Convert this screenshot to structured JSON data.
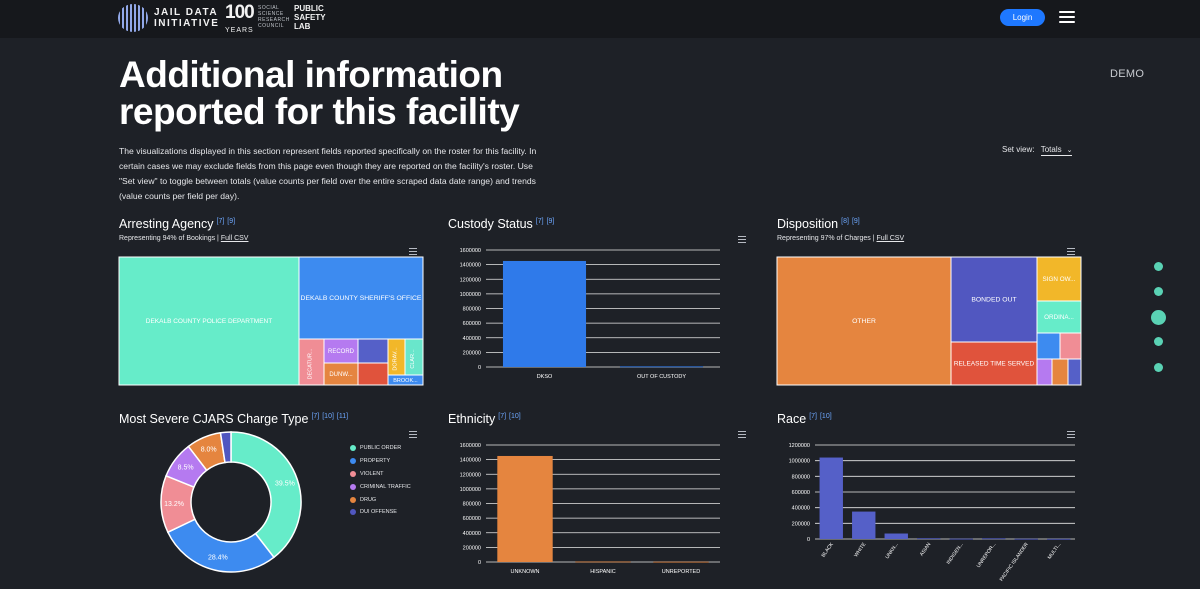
{
  "header": {
    "logo_text": "JAIL DATA\nINITIATIVE",
    "anniversary_text": "100",
    "anniversary_sub": "YEARS",
    "ssrc_text": "SOCIAL SCIENCE RESEARCH COUNCIL",
    "psl_text": "PUBLIC SAFETY LAB",
    "login_label": "Login"
  },
  "page": {
    "title": "Additional information reported for this facility",
    "badge": "DEMO",
    "intro": "The visualizations displayed in this section represent fields reported specifically on the roster for this facility. In certain cases we may exclude fields from this page even though they are reported on the facility's roster. Use \"Set view\" to toggle between totals (value counts per field over the entire scraped data date range) and trends (value counts per field per day).",
    "set_view_label": "Set view:",
    "set_view_value": "Totals"
  },
  "panels": {
    "arresting_agency": {
      "title": "Arresting Agency",
      "refs": [
        "[7]",
        "[9]"
      ],
      "subtitle": "Representing 94% of Bookings |",
      "csv_label": "Full CSV"
    },
    "custody_status": {
      "title": "Custody Status",
      "refs": [
        "[7]",
        "[9]"
      ]
    },
    "disposition": {
      "title": "Disposition",
      "refs": [
        "[8]",
        "[9]"
      ],
      "subtitle": "Representing 97% of Charges |",
      "csv_label": "Full CSV"
    },
    "cjars": {
      "title": "Most Severe CJARS Charge Type",
      "refs": [
        "[7]",
        "[10]",
        "[11]"
      ]
    },
    "ethnicity": {
      "title": "Ethnicity",
      "refs": [
        "[7]",
        "[10]"
      ]
    },
    "race": {
      "title": "Race",
      "refs": [
        "[7]",
        "[10]"
      ]
    }
  },
  "chart_data": [
    {
      "id": "arresting_agency",
      "type": "treemap",
      "items": [
        {
          "label": "DEKALB COUNTY POLICE DEPARTMENT",
          "color": "#66ecc9"
        },
        {
          "label": "DEKALB COUNTY SHERIFF'S OFFICE",
          "color": "#3d8bf0"
        },
        {
          "label": "DECATUR...",
          "color": "#f08d95"
        },
        {
          "label": "RECORD",
          "color": "#b57af0"
        },
        {
          "label": "DUNW...",
          "color": "#e58540"
        },
        {
          "label": "",
          "color": "#5560c8"
        },
        {
          "label": "",
          "color": "#e0533c"
        },
        {
          "label": "DORAV...",
          "color": "#f2b729"
        },
        {
          "label": "CLAR...",
          "color": "#69e6cb"
        },
        {
          "label": "BROOK...",
          "color": "#3d8bf0"
        }
      ]
    },
    {
      "id": "custody_status",
      "type": "bar",
      "categories": [
        "DKSO",
        "OUT OF CUSTODY"
      ],
      "values": [
        1450000,
        8000
      ],
      "yticks": [
        "1600000",
        "1400000",
        "1200000",
        "1000000",
        "800000",
        "600000",
        "400000",
        "200000",
        "0"
      ],
      "ylim": [
        0,
        1600000
      ],
      "color": "#2f7aea"
    },
    {
      "id": "disposition",
      "type": "treemap",
      "items": [
        {
          "label": "OTHER",
          "color": "#e5853f"
        },
        {
          "label": "BONDED OUT",
          "color": "#5157c0"
        },
        {
          "label": "RELEASED TIME SERVED",
          "color": "#e0533c"
        },
        {
          "label": "SIGN OW...",
          "color": "#f2b729"
        },
        {
          "label": "ORDINA...",
          "color": "#66ecc9"
        },
        {
          "label": "",
          "color": "#3d8bf0"
        },
        {
          "label": "",
          "color": "#f08d95"
        },
        {
          "label": "",
          "color": "#b57af0"
        },
        {
          "label": "",
          "color": "#e5853f"
        },
        {
          "label": "",
          "color": "#5560c8"
        }
      ]
    },
    {
      "id": "cjars",
      "type": "pie",
      "slices": [
        {
          "label": "PUBLIC ORDER",
          "value": 39.5,
          "display": "39.5%",
          "color": "#66ecc9"
        },
        {
          "label": "PROPERTY",
          "value": 28.4,
          "display": "28.4%",
          "color": "#3d8bf0"
        },
        {
          "label": "VIOLENT",
          "value": 13.2,
          "display": "13.2%",
          "color": "#f08d95"
        },
        {
          "label": "CRIMINAL TRAFFIC",
          "value": 8.5,
          "display": "8.5%",
          "color": "#b57af0"
        },
        {
          "label": "DRUG",
          "value": 8.0,
          "display": "8.0%",
          "color": "#e5853f"
        },
        {
          "label": "DUI OFFENSE",
          "value": 2.4,
          "display": "",
          "color": "#5157c0"
        }
      ]
    },
    {
      "id": "ethnicity",
      "type": "bar",
      "categories": [
        "UNKNOWN",
        "HISPANIC",
        "UNREPORTED"
      ],
      "values": [
        1450000,
        6000,
        4000
      ],
      "yticks": [
        "1600000",
        "1400000",
        "1200000",
        "1000000",
        "800000",
        "600000",
        "400000",
        "200000",
        "0"
      ],
      "ylim": [
        0,
        1600000
      ],
      "color": "#e5853f"
    },
    {
      "id": "race",
      "type": "bar",
      "categories": [
        "BLACK",
        "WHITE",
        "UNKN...",
        "ASIAN",
        "INDIGEN...",
        "UNREPOR...",
        "PACIFIC ISLANDER",
        "MULTI..."
      ],
      "values": [
        1040000,
        350000,
        70000,
        9000,
        4000,
        8000,
        3000,
        2000
      ],
      "yticks": [
        "1200000",
        "1000000",
        "800000",
        "600000",
        "400000",
        "200000",
        "0"
      ],
      "ylim": [
        0,
        1200000
      ],
      "color": "#5560c8"
    }
  ],
  "legend_icon": "circle",
  "menu_icon": "hamburger-icon",
  "accent_color": "#1e78ff"
}
